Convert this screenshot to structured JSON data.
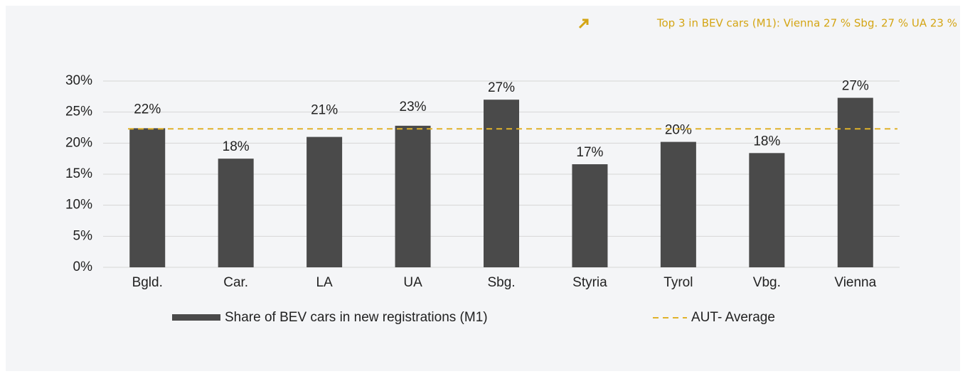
{
  "chart_data": {
    "type": "bar",
    "annotation": "Top 3 in BEV cars (M1): Vienna 27 % Sbg. 27 % UA 23 %",
    "categories": [
      "Bgld.",
      "Car.",
      "LA",
      "UA",
      "Sbg.",
      "Styria",
      "Tyrol",
      "Vbg.",
      "Vienna"
    ],
    "series": [
      {
        "name": "Share of BEV cars in new registrations (M1)",
        "color": "#4a4a4a",
        "values": [
          22.4,
          17.5,
          21.0,
          22.8,
          27.0,
          16.6,
          20.2,
          18.4,
          27.3
        ],
        "value_labels": [
          "22%",
          "18%",
          "21%",
          "23%",
          "27%",
          "17%",
          "20%",
          "18%",
          "27%"
        ]
      }
    ],
    "average": {
      "name": "AUT- Average",
      "value": 22.3,
      "color": "#e0b22a"
    },
    "ylim": [
      0,
      30
    ],
    "yticks": [
      {
        "value": 0,
        "label": "0%"
      },
      {
        "value": 5,
        "label": "5%"
      },
      {
        "value": 10,
        "label": "10%"
      },
      {
        "value": 15,
        "label": "15%"
      },
      {
        "value": 20,
        "label": "20%"
      },
      {
        "value": 25,
        "label": "25%"
      },
      {
        "value": 30,
        "label": "30%"
      }
    ],
    "grid": true
  }
}
